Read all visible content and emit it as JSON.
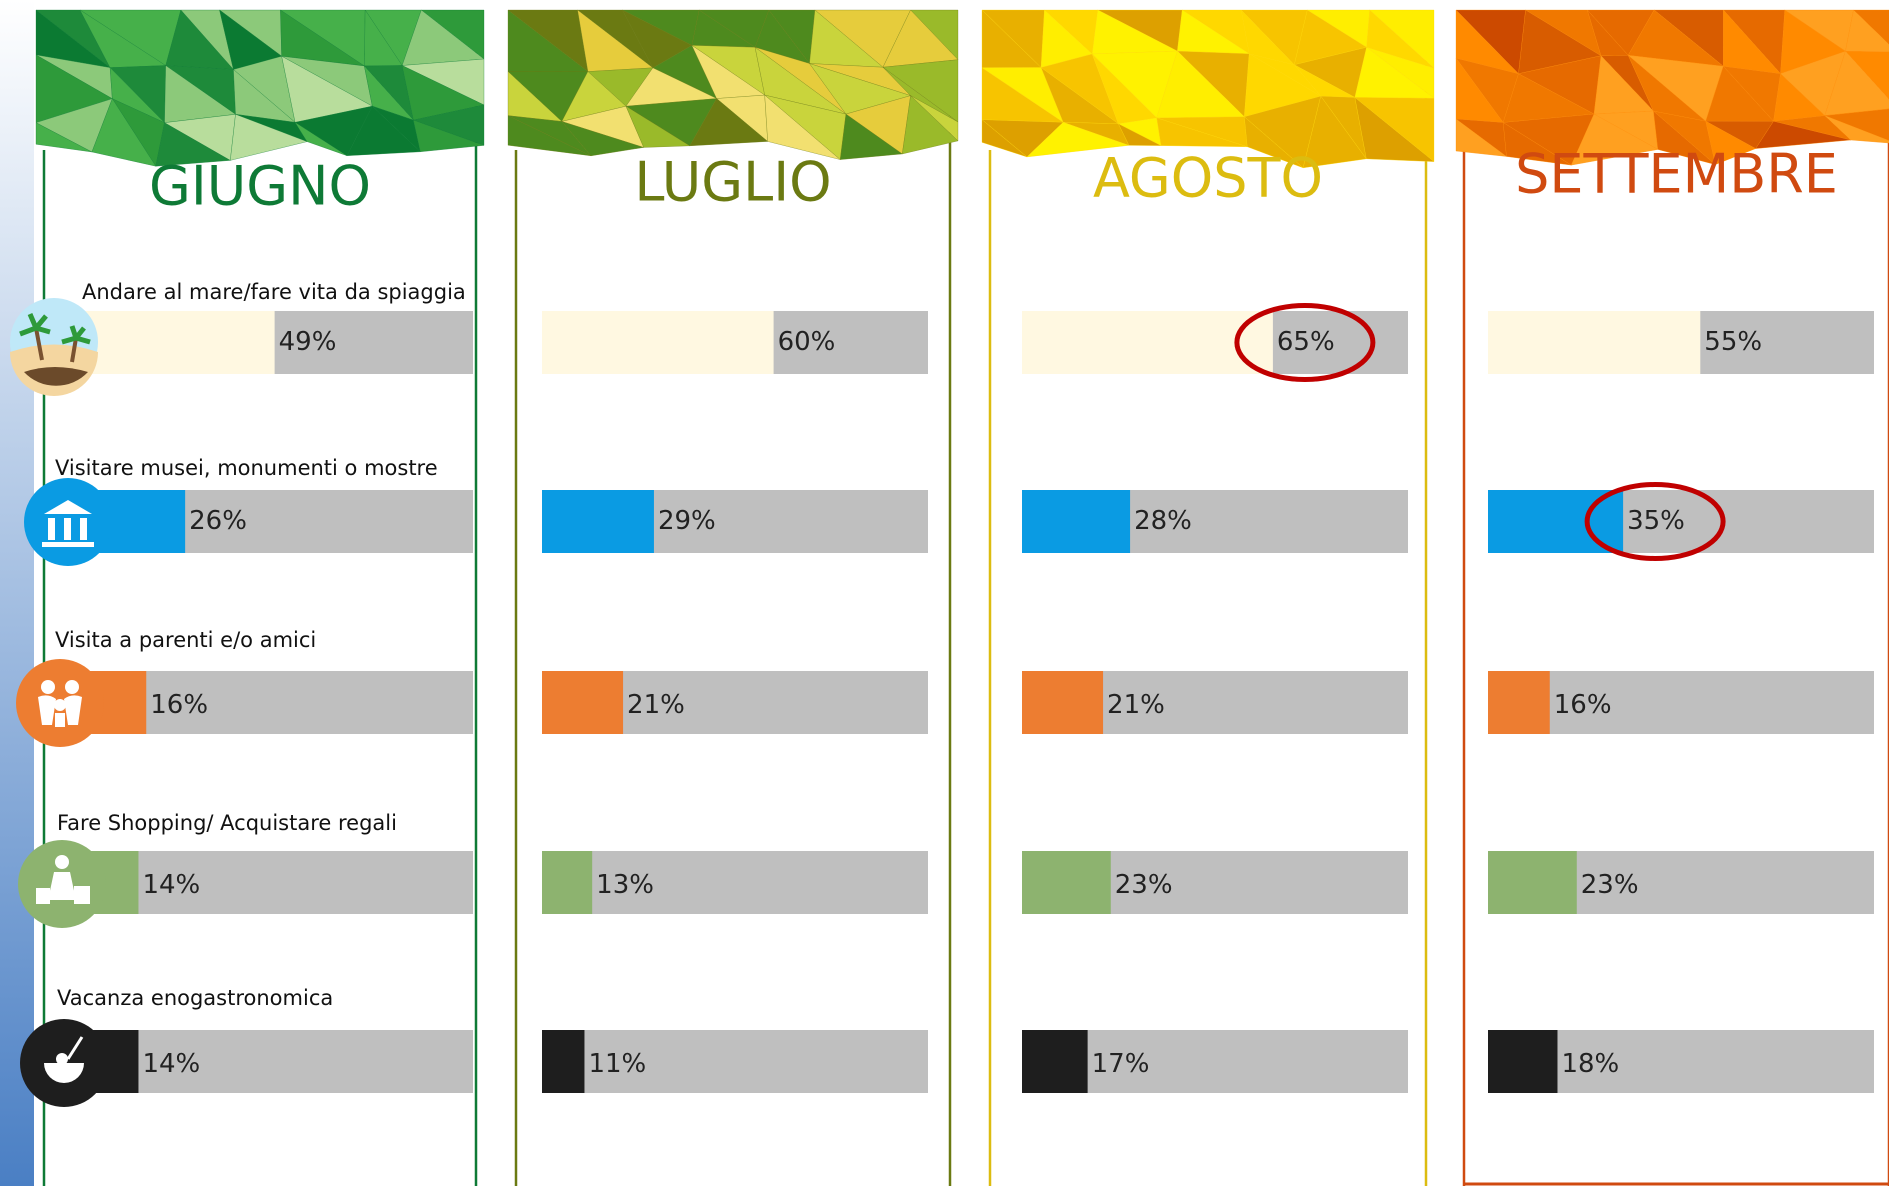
{
  "chart_data": {
    "type": "bar",
    "orientation": "horizontal",
    "categories": [
      "Andare al mare/fare vita da spiaggia",
      "Visitare musei, monumenti o mostre",
      "Visita a parenti e/o amici",
      "Fare Shopping/ Acquistare regali",
      "Vacanza enogastronomica"
    ],
    "category_colors": [
      "#fff8e1",
      "#0a9be3",
      "#ed7d31",
      "#8db36f",
      "#1e1e1e"
    ],
    "xlim": [
      0,
      100
    ],
    "series": [
      {
        "name": "GIUGNO",
        "color": "#0e7a36",
        "values": [
          49,
          26,
          16,
          14,
          14
        ],
        "value_labels": [
          "49%",
          "26%",
          "16%",
          "14%",
          "14%"
        ]
      },
      {
        "name": "LUGLIO",
        "color": "#6b7a12",
        "values": [
          60,
          29,
          21,
          13,
          11
        ],
        "value_labels": [
          "60%",
          "29%",
          "21%",
          "13%",
          "11%"
        ]
      },
      {
        "name": "AGOSTO",
        "color": "#dcbc10",
        "values": [
          65,
          28,
          21,
          23,
          17
        ],
        "value_labels": [
          "65%",
          "28%",
          "21%",
          "23%",
          "17%"
        ],
        "highlight": 0
      },
      {
        "name": "SETTEMBRE",
        "color": "#d04a10",
        "values": [
          55,
          35,
          16,
          23,
          18
        ],
        "value_labels": [
          "55%",
          "35%",
          "16%",
          "23%",
          "18%"
        ],
        "highlight": 1
      }
    ]
  }
}
